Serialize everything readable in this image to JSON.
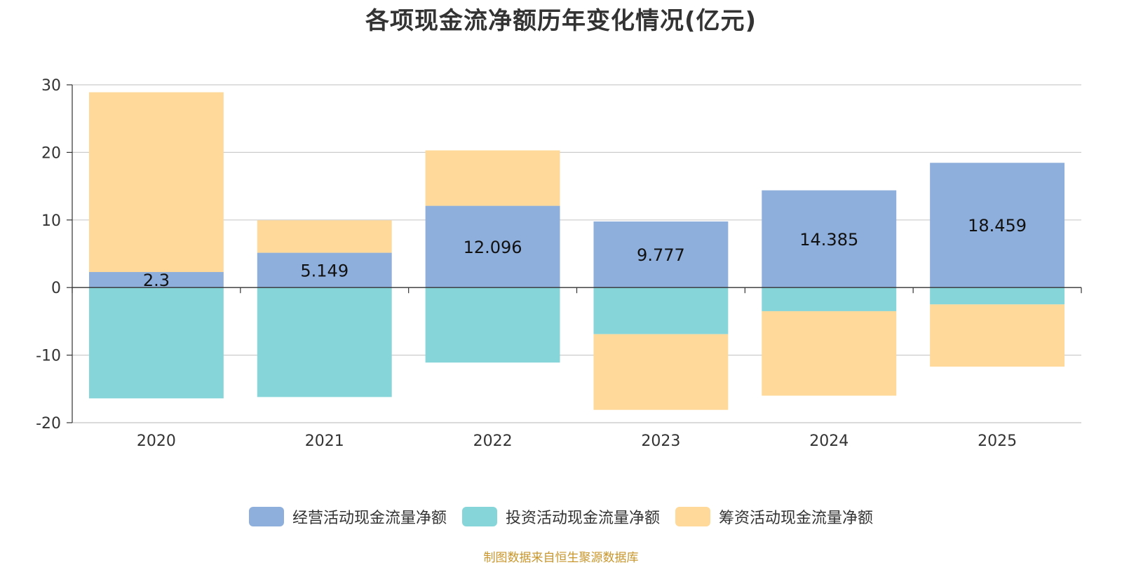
{
  "chart_data": {
    "type": "bar",
    "stacked": true,
    "title": "各项现金流净额历年变化情况(亿元)",
    "categories": [
      "2020",
      "2021",
      "2022",
      "2023",
      "2024",
      "2025"
    ],
    "ylim": [
      -20,
      30
    ],
    "yticks": [
      30,
      20,
      10,
      0,
      -10,
      -20
    ],
    "ytick_labels": [
      "30",
      "20",
      "10",
      "0",
      "-10",
      "-20"
    ],
    "grid": true,
    "legend_position": "bottom",
    "series": [
      {
        "name": "经营活动现金流量净额",
        "color": "#8eaedb",
        "values": [
          2.3,
          5.149,
          12.096,
          9.777,
          14.385,
          18.459
        ],
        "labels": [
          "2.3",
          "5.149",
          "12.096",
          "9.777",
          "14.385",
          "18.459"
        ]
      },
      {
        "name": "投资活动现金流量净额",
        "color": "#86d5d9",
        "values": [
          -16.4,
          -16.2,
          -11.1,
          -6.9,
          -3.5,
          -2.5
        ]
      },
      {
        "name": "筹资活动现金流量净额",
        "color": "#fed999",
        "values": [
          26.6,
          4.8,
          8.2,
          -11.2,
          -12.5,
          -9.2
        ]
      }
    ]
  },
  "footer": {
    "source": "制图数据来自恒生聚源数据库"
  }
}
